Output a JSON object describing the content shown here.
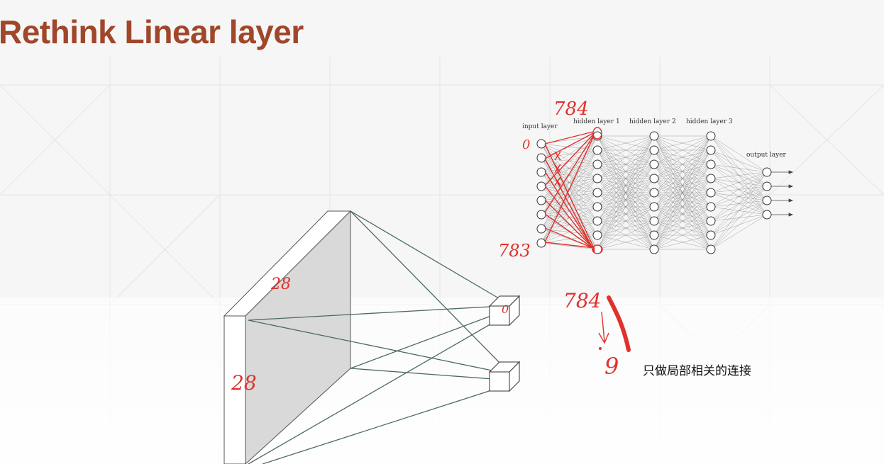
{
  "slide": {
    "title": "Rethink Linear layer",
    "title_color": "#a0462a",
    "background": "#f6f6f6"
  },
  "network": {
    "layer_labels": [
      "input layer",
      "hidden layer 1",
      "hidden layer 2",
      "hidden layer 3",
      "output layer"
    ],
    "layer_node_counts": [
      8,
      9,
      9,
      9,
      4
    ]
  },
  "annotations": {
    "ink_color": "#e0322d",
    "hidden_top": "784",
    "input_first": "0",
    "input_last": "783",
    "conv_count": "784",
    "conv_to": "9",
    "conv_node": "0",
    "side_top": "28",
    "side_left": "28"
  },
  "caption": "只做局部相关的连接"
}
